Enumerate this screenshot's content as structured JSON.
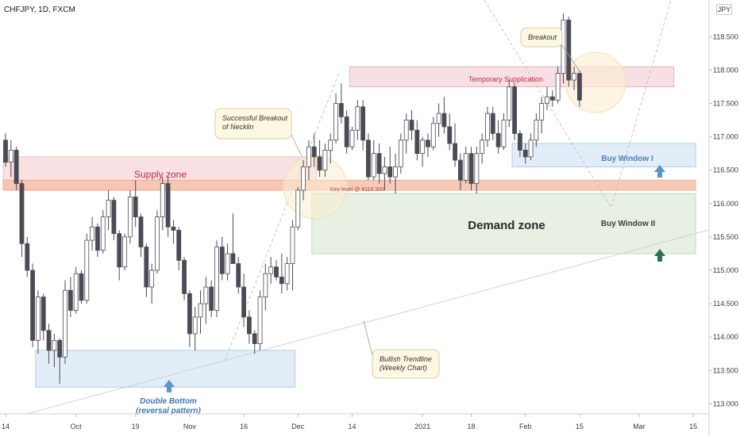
{
  "header": {
    "symbol": "CHFJPY, 1D, FXCM",
    "currency_badge": "JPY"
  },
  "chart_data": {
    "type": "candlestick",
    "title": "CHFJPY, 1D, FXCM",
    "ylim": [
      112.85,
      119.05
    ],
    "y_ticks": [
      {
        "label": "113.000",
        "value": 113.0
      },
      {
        "label": "113.500",
        "value": 113.5
      },
      {
        "label": "114.000",
        "value": 114.0
      },
      {
        "label": "114.500",
        "value": 114.5
      },
      {
        "label": "115.000",
        "value": 115.0
      },
      {
        "label": "115.500",
        "value": 115.5
      },
      {
        "label": "116.000",
        "value": 116.0
      },
      {
        "label": "116.500",
        "value": 116.5
      },
      {
        "label": "117.000",
        "value": 117.0
      },
      {
        "label": "117.500",
        "value": 117.5
      },
      {
        "label": "118.000",
        "value": 118.0
      },
      {
        "label": "118.500",
        "value": 118.5
      }
    ],
    "x_ticks": [
      {
        "label": "14",
        "bar": 0
      },
      {
        "label": "Oct",
        "bar": 13
      },
      {
        "label": "19",
        "bar": 24
      },
      {
        "label": "Nov",
        "bar": 34
      },
      {
        "label": "16",
        "bar": 44
      },
      {
        "label": "Dec",
        "bar": 54
      },
      {
        "label": "14",
        "bar": 64
      },
      {
        "label": "2021",
        "bar": 77
      },
      {
        "label": "18",
        "bar": 86
      },
      {
        "label": "Feb",
        "bar": 96
      },
      {
        "label": "15",
        "bar": 106
      },
      {
        "label": "Mar",
        "bar": 117
      },
      {
        "label": "15",
        "bar": 127
      }
    ],
    "candles": [
      [
        116.95,
        117.05,
        116.55,
        116.62
      ],
      [
        116.62,
        116.95,
        116.4,
        116.8
      ],
      [
        116.8,
        116.85,
        116.2,
        116.3
      ],
      [
        116.3,
        116.35,
        115.2,
        115.4
      ],
      [
        115.4,
        115.5,
        114.9,
        115.0
      ],
      [
        115.0,
        115.1,
        113.85,
        113.95
      ],
      [
        113.95,
        114.7,
        113.75,
        114.6
      ],
      [
        114.6,
        114.65,
        113.95,
        114.1
      ],
      [
        114.1,
        114.2,
        113.6,
        113.8
      ],
      [
        113.8,
        114.05,
        113.55,
        113.95
      ],
      [
        113.95,
        113.98,
        113.3,
        113.7
      ],
      [
        113.7,
        114.85,
        113.6,
        114.7
      ],
      [
        114.7,
        114.9,
        114.3,
        114.4
      ],
      [
        114.4,
        115.05,
        114.35,
        114.95
      ],
      [
        114.95,
        115.0,
        114.5,
        114.55
      ],
      [
        114.55,
        115.55,
        114.5,
        115.45
      ],
      [
        115.45,
        115.8,
        115.3,
        115.65
      ],
      [
        115.65,
        115.7,
        115.2,
        115.3
      ],
      [
        115.3,
        115.9,
        115.25,
        115.8
      ],
      [
        115.8,
        116.2,
        115.6,
        116.05
      ],
      [
        116.05,
        116.1,
        115.45,
        115.55
      ],
      [
        115.55,
        115.6,
        114.85,
        115.05
      ],
      [
        115.05,
        115.55,
        115.0,
        115.5
      ],
      [
        115.5,
        116.2,
        115.4,
        116.1
      ],
      [
        116.1,
        116.35,
        115.65,
        115.8
      ],
      [
        115.8,
        115.85,
        115.2,
        115.35
      ],
      [
        115.35,
        115.4,
        114.6,
        114.75
      ],
      [
        114.75,
        115.1,
        114.5,
        115.0
      ],
      [
        115.0,
        115.9,
        114.95,
        115.8
      ],
      [
        115.8,
        116.4,
        115.6,
        116.3
      ],
      [
        116.3,
        116.4,
        115.5,
        115.65
      ],
      [
        115.65,
        115.75,
        115.4,
        115.6
      ],
      [
        115.6,
        115.65,
        115.0,
        115.15
      ],
      [
        115.15,
        115.2,
        114.55,
        114.65
      ],
      [
        114.65,
        114.7,
        113.85,
        114.05
      ],
      [
        114.05,
        114.45,
        113.8,
        114.3
      ],
      [
        114.3,
        114.7,
        114.05,
        114.5
      ],
      [
        114.5,
        114.9,
        114.2,
        114.75
      ],
      [
        114.75,
        114.85,
        114.3,
        114.4
      ],
      [
        114.4,
        115.45,
        114.3,
        115.35
      ],
      [
        115.35,
        115.5,
        114.85,
        114.95
      ],
      [
        114.95,
        115.4,
        114.85,
        115.25
      ],
      [
        115.25,
        115.85,
        115.15,
        115.1
      ],
      [
        115.1,
        115.2,
        114.65,
        114.75
      ],
      [
        114.75,
        114.95,
        114.15,
        114.3
      ],
      [
        114.3,
        114.4,
        113.9,
        114.05
      ],
      [
        114.05,
        114.1,
        113.75,
        113.9
      ],
      [
        113.9,
        114.7,
        113.8,
        114.6
      ],
      [
        114.6,
        115.1,
        114.4,
        114.95
      ],
      [
        114.95,
        115.2,
        114.8,
        115.05
      ],
      [
        115.05,
        115.15,
        114.85,
        114.9
      ],
      [
        114.9,
        115.25,
        114.65,
        114.8
      ],
      [
        114.8,
        115.2,
        114.7,
        115.1
      ],
      [
        115.1,
        115.75,
        114.7,
        115.65
      ],
      [
        115.65,
        116.25,
        115.6,
        116.2
      ],
      [
        116.2,
        116.65,
        116.05,
        116.55
      ],
      [
        116.55,
        116.95,
        116.35,
        116.85
      ],
      [
        116.85,
        117.05,
        116.55,
        116.7
      ],
      [
        116.7,
        116.95,
        116.4,
        116.5
      ],
      [
        116.5,
        116.9,
        116.4,
        116.8
      ],
      [
        116.8,
        117.05,
        116.6,
        116.95
      ],
      [
        116.95,
        117.65,
        116.9,
        117.5
      ],
      [
        117.5,
        117.8,
        117.2,
        117.3
      ],
      [
        117.3,
        117.4,
        116.75,
        116.85
      ],
      [
        116.85,
        117.15,
        116.8,
        117.1
      ],
      [
        117.1,
        117.55,
        116.95,
        117.45
      ],
      [
        117.45,
        117.55,
        116.8,
        116.95
      ],
      [
        116.95,
        117.05,
        116.35,
        116.4
      ],
      [
        116.4,
        116.95,
        116.35,
        116.75
      ],
      [
        116.75,
        116.9,
        116.3,
        116.45
      ],
      [
        116.45,
        116.7,
        116.2,
        116.55
      ],
      [
        116.55,
        116.85,
        116.3,
        116.4
      ],
      [
        116.4,
        116.75,
        116.15,
        116.55
      ],
      [
        116.55,
        117.05,
        116.45,
        116.95
      ],
      [
        116.95,
        117.35,
        116.75,
        117.25
      ],
      [
        117.25,
        117.4,
        116.95,
        117.1
      ],
      [
        117.1,
        117.25,
        116.65,
        116.75
      ],
      [
        116.75,
        117.0,
        116.55,
        116.95
      ],
      [
        116.95,
        117.05,
        116.7,
        116.85
      ],
      [
        116.85,
        117.3,
        116.8,
        117.2
      ],
      [
        117.2,
        117.5,
        117.0,
        117.35
      ],
      [
        117.35,
        117.6,
        117.05,
        117.15
      ],
      [
        117.15,
        117.35,
        116.8,
        116.9
      ],
      [
        116.9,
        117.2,
        116.55,
        116.65
      ],
      [
        116.65,
        116.75,
        116.2,
        116.35
      ],
      [
        116.35,
        116.85,
        116.3,
        116.75
      ],
      [
        116.75,
        116.85,
        116.2,
        116.3
      ],
      [
        116.3,
        116.85,
        116.15,
        116.75
      ],
      [
        116.75,
        117.05,
        116.6,
        116.95
      ],
      [
        116.95,
        117.45,
        116.85,
        117.35
      ],
      [
        117.35,
        117.45,
        116.95,
        117.05
      ],
      [
        117.05,
        117.25,
        116.75,
        116.85
      ],
      [
        116.85,
        117.35,
        116.8,
        117.25
      ],
      [
        117.25,
        117.85,
        117.15,
        117.75
      ],
      [
        117.75,
        117.8,
        116.95,
        117.05
      ],
      [
        117.05,
        117.1,
        116.7,
        116.8
      ],
      [
        116.8,
        116.9,
        116.6,
        116.7
      ],
      [
        116.7,
        117.05,
        116.65,
        116.95
      ],
      [
        116.95,
        117.35,
        116.85,
        117.25
      ],
      [
        117.25,
        117.6,
        117.05,
        117.5
      ],
      [
        117.5,
        117.75,
        117.4,
        117.6
      ],
      [
        117.6,
        117.7,
        117.45,
        117.55
      ],
      [
        117.55,
        118.05,
        117.5,
        117.95
      ],
      [
        117.95,
        118.85,
        117.8,
        118.75
      ],
      [
        118.75,
        118.8,
        117.75,
        117.85
      ],
      [
        117.85,
        118.05,
        117.7,
        117.95
      ],
      [
        117.95,
        118.0,
        117.45,
        117.55
      ]
    ],
    "zones": [
      {
        "label": "Temporary Supplication",
        "y_top": 118.05,
        "y_bottom": 117.75,
        "from_bar": 64,
        "to_bar": 123,
        "fill": "#f7dde1",
        "stroke": "#e8a9b4"
      },
      {
        "label": "Supply zone",
        "y_top": 116.7,
        "y_bottom": 116.2,
        "from_bar": 0,
        "to_bar": 57,
        "fill": "#f9dde1",
        "stroke": "#f0bcc5"
      },
      {
        "label": "Key level @ ¥116.300",
        "y_top": 116.35,
        "y_bottom": 116.2,
        "from_bar": 0,
        "to_bar": 127,
        "fill": "#f7c4b0",
        "stroke": "#f0a78a"
      },
      {
        "label": "Demand zone",
        "y_top": 116.15,
        "y_bottom": 115.25,
        "from_bar": 57,
        "to_bar": 127,
        "fill": "#e5efe1",
        "stroke": "#bcd6b4"
      },
      {
        "label": "Buy Window I",
        "y_top": 116.9,
        "y_bottom": 116.55,
        "from_bar": 94,
        "to_bar": 127,
        "fill": "#e1ecf7",
        "stroke": "#a8c7e6"
      },
      {
        "label": "",
        "y_top": 113.8,
        "y_bottom": 113.25,
        "from_bar": 6,
        "to_bar": 53,
        "fill": "#e1ecf7",
        "stroke": "#a8c7e6"
      }
    ],
    "annotations": [
      {
        "text": [
          "Successful Breakout",
          "of Necklin"
        ],
        "kind": "callout"
      },
      {
        "text": [
          "Breakout"
        ],
        "kind": "callout"
      },
      {
        "text": [
          "Bullish Trendline",
          "(Weekly Chart)"
        ],
        "kind": "callout"
      },
      {
        "text": [
          "Double Bottom",
          "(reversal pattern)"
        ],
        "kind": "label"
      },
      {
        "text": [
          "Buy Window II"
        ],
        "kind": "label"
      }
    ],
    "colors": {
      "up": "#ffffff",
      "down": "#4b4b55",
      "wick": "#4b4b55",
      "buy_arrow_blue": "#5b95c9",
      "buy_arrow_green": "#2e6e59",
      "supply_text": "#c2254d",
      "key_level_text": "#b34a3c",
      "demand_text": "#2b2b2b",
      "buy_window_text": "#4b84b8",
      "double_bottom_text": "#3f78b3"
    }
  }
}
